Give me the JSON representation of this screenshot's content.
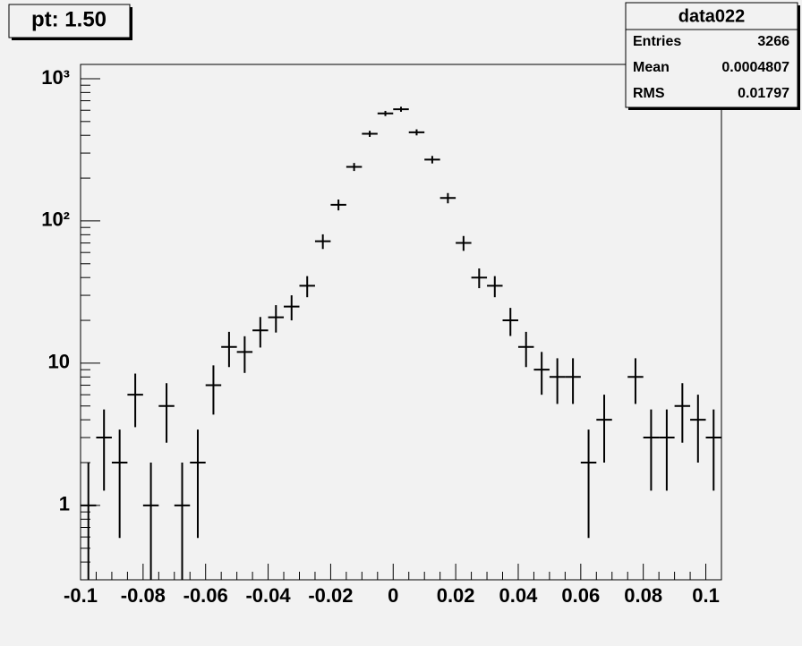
{
  "chart_data": {
    "type": "errorbar",
    "title": "pt: 1.50",
    "stats": {
      "name": "data022",
      "labels": [
        "Entries",
        "Mean",
        "RMS"
      ],
      "values": [
        "3266",
        "0.0004807",
        "0.01797"
      ]
    },
    "x": [
      -0.0975,
      -0.0925,
      -0.0875,
      -0.0825,
      -0.0775,
      -0.0725,
      -0.0675,
      -0.0625,
      -0.0575,
      -0.0525,
      -0.0475,
      -0.0425,
      -0.0375,
      -0.0325,
      -0.0275,
      -0.0225,
      -0.0175,
      -0.0125,
      -0.0075,
      -0.0025,
      0.0025,
      0.0075,
      0.0125,
      0.0175,
      0.0225,
      0.0275,
      0.0325,
      0.0375,
      0.0425,
      0.0475,
      0.0525,
      0.0575,
      0.0625,
      0.0675,
      0.0725,
      0.0775,
      0.0825,
      0.0875,
      0.0925,
      0.0975,
      0.1025
    ],
    "values": [
      1,
      3,
      2,
      6,
      1,
      5,
      1,
      2,
      7,
      13,
      12,
      17,
      21,
      25,
      35,
      72,
      130,
      240,
      410,
      570,
      610,
      420,
      270,
      145,
      70,
      40,
      35,
      20,
      13,
      9,
      8,
      8,
      2,
      4,
      null,
      8,
      3,
      3,
      5,
      4,
      3
    ],
    "errors": [
      1,
      1.73,
      1.41,
      2.45,
      1,
      2.24,
      1,
      1.41,
      2.65,
      3.61,
      3.46,
      4.12,
      4.58,
      5,
      5.92,
      8.49,
      11.4,
      15.5,
      20.2,
      23.9,
      24.7,
      20.5,
      16.4,
      12.0,
      8.37,
      6.32,
      5.92,
      4.47,
      3.61,
      3,
      2.83,
      2.83,
      1.41,
      2,
      null,
      2.83,
      1.73,
      1.73,
      2.24,
      2,
      1.73
    ],
    "color": "#000000",
    "xlim": [
      -0.1,
      0.105
    ],
    "xticks": [
      -0.1,
      -0.08,
      -0.06,
      -0.04,
      -0.02,
      0,
      0.02,
      0.04,
      0.06,
      0.08,
      0.1
    ],
    "ylim": [
      0.3,
      1260
    ],
    "yscale": "log",
    "yticks": [
      1,
      10,
      {
        "value": 100,
        "label": "10²"
      },
      {
        "value": 1000,
        "label": "10³"
      }
    ]
  }
}
